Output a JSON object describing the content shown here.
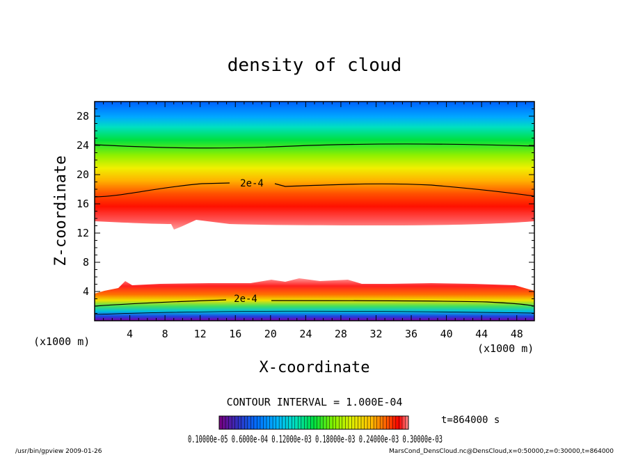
{
  "chart_data": {
    "type": "heatmap",
    "title": "density of cloud",
    "xlabel": "X-coordinate",
    "ylabel": "Z-coordinate",
    "x_unit": "(x1000 m)",
    "y_unit": "(x1000 m)",
    "xlim": [
      0,
      50
    ],
    "ylim": [
      0,
      30
    ],
    "x_ticks": [
      "4",
      "8",
      "12",
      "16",
      "20",
      "24",
      "28",
      "32",
      "36",
      "40",
      "44",
      "48"
    ],
    "y_ticks": [
      "4",
      "8",
      "12",
      "16",
      "20",
      "24",
      "28"
    ],
    "contour_label": "2e-4",
    "contour_interval": "CONTOUR INTERVAL = 1.000E-04",
    "time_label": "t=864000 s",
    "colorbar_labels": "0.10000e-05",
    "colorbar_overlap_text": "0.10000e-05 0.6000e-04 0.12000e-03 0.18000e-03 0.24000e-03 0.30000e-03",
    "colormap": [
      "#7a0080",
      "#3030c0",
      "#0070ff",
      "#00b0ff",
      "#00e0c0",
      "#00e040",
      "#80f000",
      "#e0f000",
      "#ffc000",
      "#ff6000",
      "#ff0000",
      "#ff9090"
    ],
    "footer_left": "/usr/bin/gpview   2009-01-26",
    "footer_right": "MarsCond_DensCloud.nc@DensCloud,x=0:50000,z=0:30000,t=864000"
  }
}
